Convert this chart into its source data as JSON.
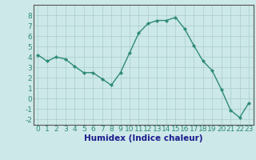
{
  "x": [
    0,
    1,
    2,
    3,
    4,
    5,
    6,
    7,
    8,
    9,
    10,
    11,
    12,
    13,
    14,
    15,
    16,
    17,
    18,
    19,
    20,
    21,
    22,
    23
  ],
  "y": [
    4.2,
    3.6,
    4.0,
    3.8,
    3.1,
    2.5,
    2.5,
    1.9,
    1.3,
    2.5,
    4.4,
    6.3,
    7.2,
    7.5,
    7.5,
    7.8,
    6.7,
    5.1,
    3.6,
    2.7,
    0.9,
    -1.1,
    -1.8,
    -0.4
  ],
  "xlabel": "Humidex (Indice chaleur)",
  "ylim": [
    -2.5,
    9.0
  ],
  "xlim": [
    -0.5,
    23.5
  ],
  "yticks": [
    -2,
    -1,
    0,
    1,
    2,
    3,
    4,
    5,
    6,
    7,
    8
  ],
  "xticks": [
    0,
    1,
    2,
    3,
    4,
    5,
    6,
    7,
    8,
    9,
    10,
    11,
    12,
    13,
    14,
    15,
    16,
    17,
    18,
    19,
    20,
    21,
    22,
    23
  ],
  "line_color": "#2e8b74",
  "marker": "D",
  "marker_size": 2.2,
  "bg_color": "#cce8e8",
  "grid_color": "#aacccc",
  "xlabel_color": "#1a1a8c",
  "xlabel_fontsize": 7.5,
  "tick_fontsize": 6.5,
  "tick_color": "#2e8b74"
}
